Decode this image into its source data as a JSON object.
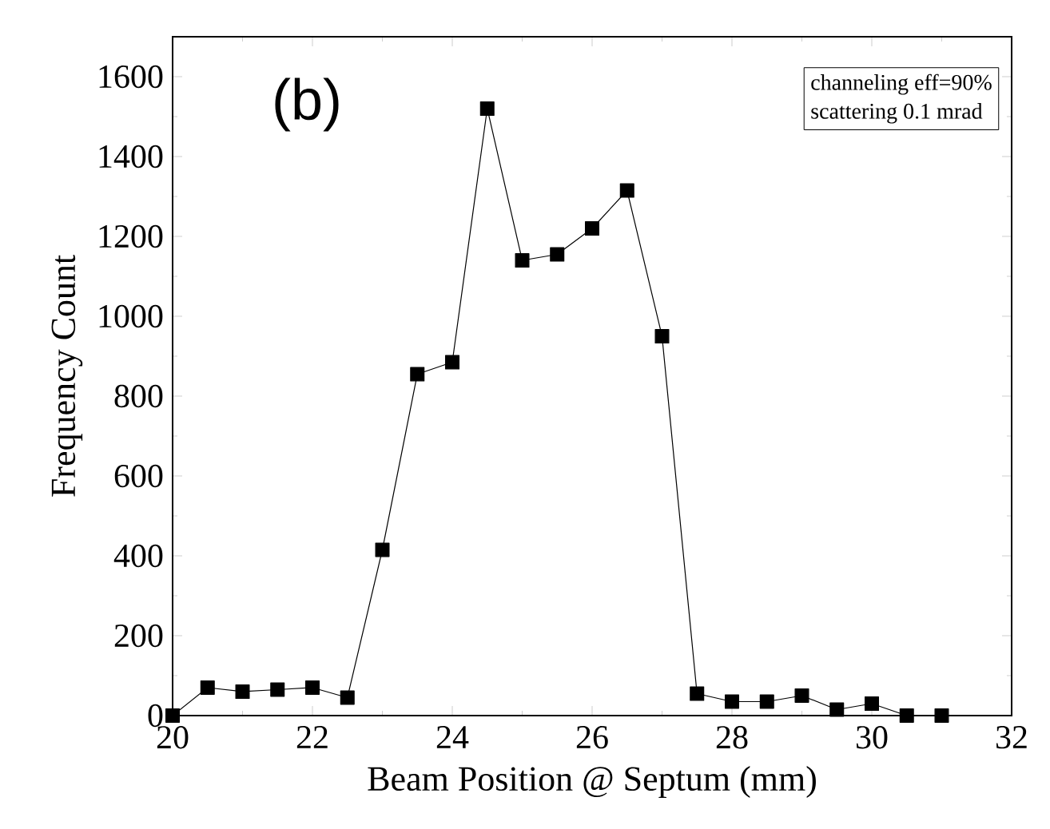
{
  "chart_data": {
    "type": "line",
    "xlabel": "Beam Position @ Septum (mm)",
    "ylabel": "Frequency Count",
    "annotations": [
      "(b)",
      "channeling eff=90%",
      "scattering 0.1 mrad"
    ],
    "x": [
      20,
      20.5,
      21,
      21.5,
      22,
      22.5,
      23,
      23.5,
      24,
      24.5,
      25,
      25.5,
      26,
      26.5,
      27,
      27.5,
      28,
      28.5,
      29,
      29.5,
      30,
      30.5,
      31
    ],
    "series": [
      {
        "color": "#000000",
        "values": [
          0,
          70,
          60,
          65,
          70,
          45,
          415,
          855,
          885,
          1520,
          1140,
          1155,
          1220,
          1315,
          950,
          55,
          35,
          35,
          50,
          15,
          30,
          0,
          0
        ]
      }
    ],
    "xlim": [
      20,
      32
    ],
    "ylim": [
      0,
      1700
    ],
    "xticks": [
      20,
      22,
      24,
      26,
      28,
      30,
      32
    ],
    "yticks": [
      0,
      200,
      400,
      600,
      800,
      1000,
      1200,
      1400,
      1600
    ],
    "marker": "square",
    "line_style": "solid"
  }
}
